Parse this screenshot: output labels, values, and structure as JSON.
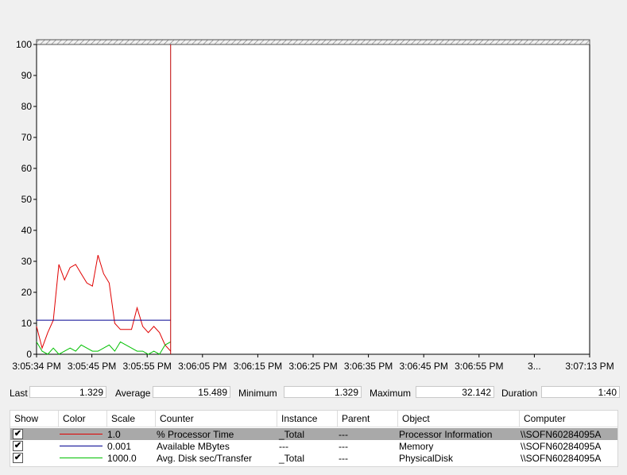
{
  "chart_data": {
    "type": "line",
    "ylim": [
      0,
      100
    ],
    "yticks": [
      "100",
      "90",
      "80",
      "70",
      "60",
      "50",
      "40",
      "30",
      "20",
      "10",
      "0"
    ],
    "xticks": [
      "3:05:34 PM",
      "3:05:45 PM",
      "3:05:55 PM",
      "3:06:05 PM",
      "3:06:15 PM",
      "3:06:25 PM",
      "3:06:35 PM",
      "3:06:45 PM",
      "3:06:55 PM",
      "3...",
      "3:07:13 PM"
    ],
    "samples": 100,
    "current_sample": 24,
    "series": [
      {
        "color": "#e00000",
        "values": [
          9,
          2,
          7,
          11,
          29,
          24,
          28,
          29,
          26,
          23,
          22,
          32,
          26,
          23,
          10,
          8,
          8,
          8,
          15,
          9,
          7,
          9,
          7,
          3,
          1
        ]
      },
      {
        "color": "#000090",
        "values": [
          11,
          11,
          11,
          11,
          11,
          11,
          11,
          11,
          11,
          11,
          11,
          11,
          11,
          11,
          11,
          11,
          11,
          11,
          11,
          11,
          11,
          11,
          11,
          11,
          11
        ]
      },
      {
        "color": "#00c000",
        "values": [
          4,
          1,
          0,
          2,
          0,
          1,
          2,
          1,
          3,
          2,
          1,
          1,
          2,
          3,
          1,
          4,
          3,
          2,
          1,
          1,
          0,
          1,
          0,
          3,
          4
        ]
      }
    ]
  },
  "stats": {
    "last_label": "Last",
    "last": "1.329",
    "average_label": "Average",
    "average": "15.489",
    "minimum_label": "Minimum",
    "minimum": "1.329",
    "maximum_label": "Maximum",
    "maximum": "32.142",
    "duration_label": "Duration",
    "duration": "1:40"
  },
  "legend": {
    "headers": {
      "show": "Show",
      "color": "Color",
      "scale": "Scale",
      "counter": "Counter",
      "instance": "Instance",
      "parent": "Parent",
      "object": "Object",
      "computer": "Computer"
    },
    "rows": [
      {
        "color": "#e00000",
        "scale": "1.0",
        "counter": "% Processor Time",
        "instance": "_Total",
        "parent": "---",
        "object": "Processor Information",
        "computer": "\\\\SOFN60284095A",
        "checked": "✔"
      },
      {
        "color": "#000090",
        "scale": "0.001",
        "counter": "Available MBytes",
        "instance": "---",
        "parent": "---",
        "object": "Memory",
        "computer": "\\\\SOFN60284095A",
        "checked": "✔"
      },
      {
        "color": "#00c000",
        "scale": "1000.0",
        "counter": "Avg. Disk sec/Transfer",
        "instance": "_Total",
        "parent": "---",
        "object": "PhysicalDisk",
        "computer": "\\\\SOFN60284095A",
        "checked": "✔"
      }
    ]
  }
}
